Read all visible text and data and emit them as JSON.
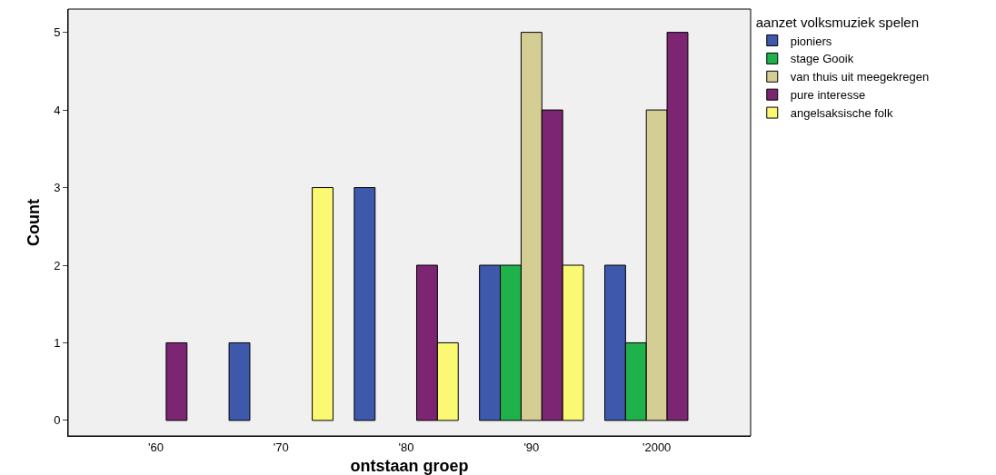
{
  "chart_data": {
    "type": "bar",
    "xlabel": "ontstaan groep",
    "ylabel": "Count",
    "legend_title": "aanzet volksmuziek spelen",
    "categories": [
      "'60",
      "'70",
      "'80",
      "'90",
      "'2000"
    ],
    "series": [
      {
        "name": "pioniers",
        "color": "#3e58ac",
        "values": [
          null,
          1,
          3,
          2,
          2
        ]
      },
      {
        "name": "stage Gooik",
        "color": "#1fb24a",
        "values": [
          null,
          null,
          null,
          2,
          1
        ]
      },
      {
        "name": "van thuis uit meegekregen",
        "color": "#d5ce94",
        "values": [
          null,
          null,
          null,
          5,
          4
        ]
      },
      {
        "name": "pure interesse",
        "color": "#7b2573",
        "values": [
          1,
          null,
          2,
          4,
          5
        ]
      },
      {
        "name": "angelsaksische folk",
        "color": "#fbf873",
        "values": [
          null,
          3,
          1,
          2,
          null
        ]
      }
    ],
    "ylim": [
      -0.2,
      5.3
    ],
    "yticks": [
      0,
      1,
      2,
      3,
      4,
      5
    ],
    "grid": false,
    "legend": "right"
  }
}
